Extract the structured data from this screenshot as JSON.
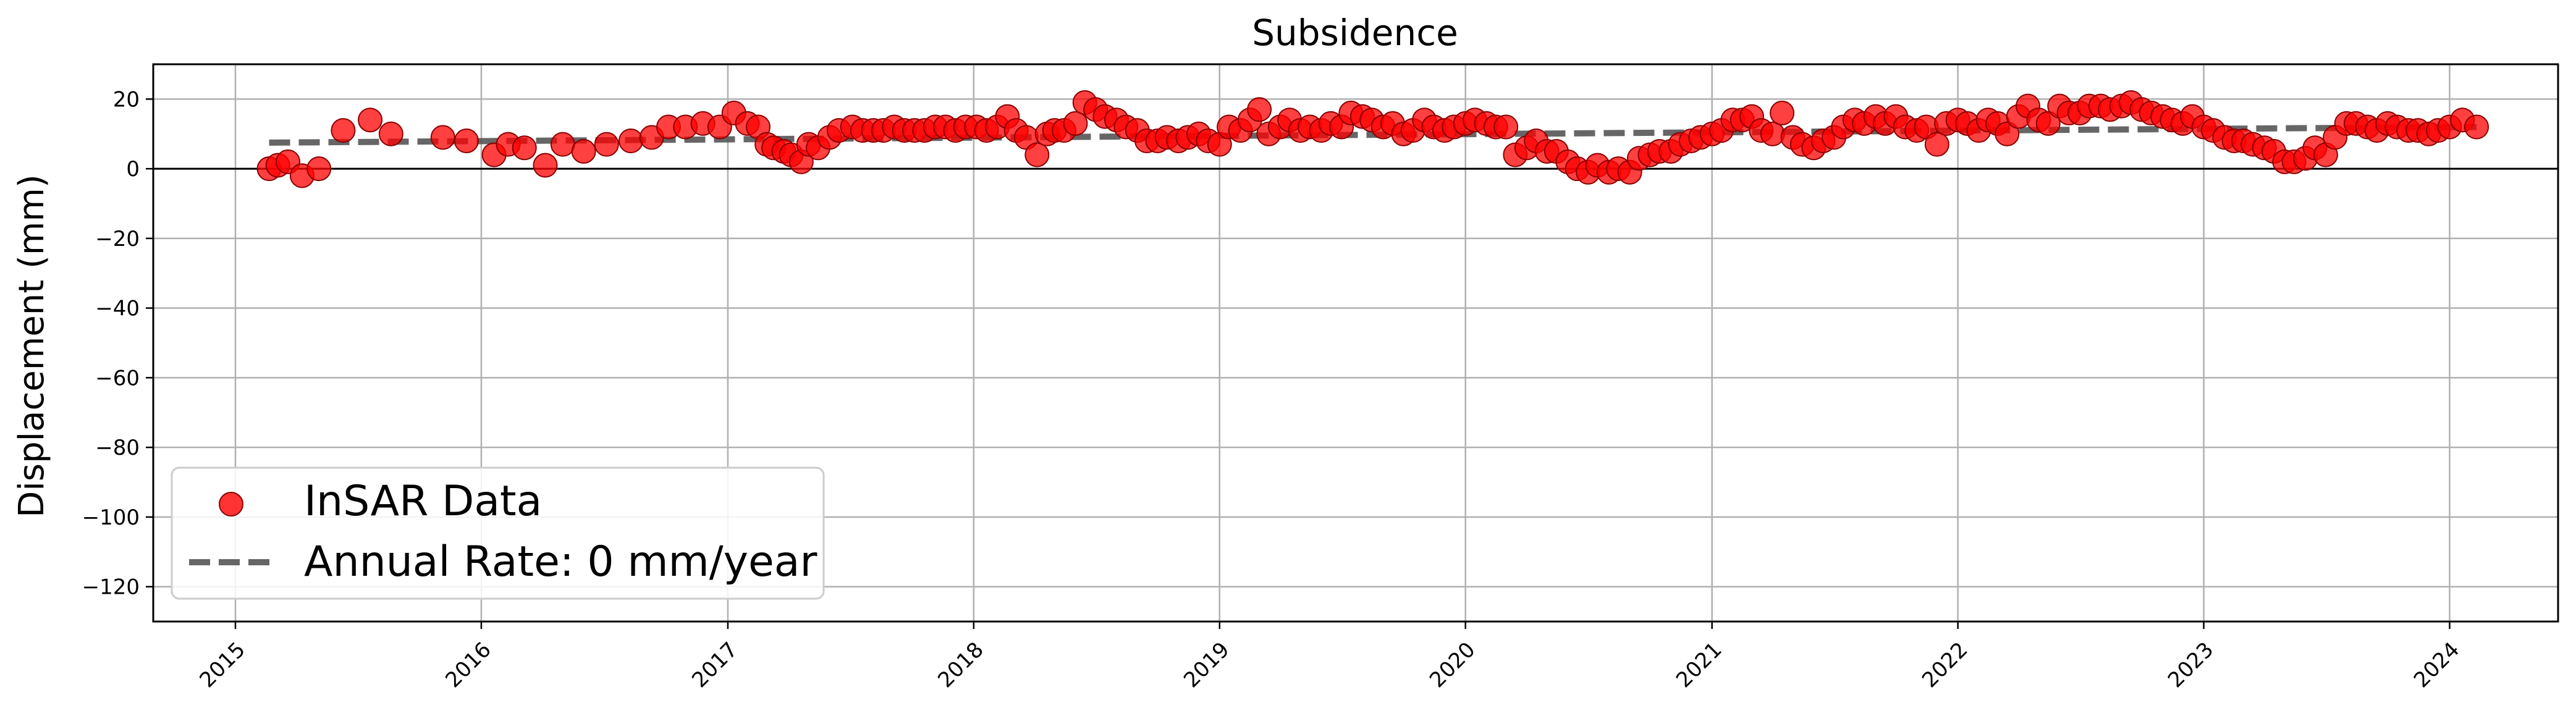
{
  "chart_data": {
    "type": "scatter",
    "title": "Subsidence",
    "xlabel": "",
    "ylabel": "Displacement (mm)",
    "x_axis_type": "date",
    "xlim": [
      "2014-09-01",
      "2024-06-10"
    ],
    "ylim": [
      -130,
      30
    ],
    "x_ticks": [
      "2015",
      "2016",
      "2017",
      "2018",
      "2019",
      "2020",
      "2021",
      "2022",
      "2023",
      "2024"
    ],
    "y_ticks": [
      20,
      0,
      -20,
      -40,
      -60,
      -80,
      -100,
      -120
    ],
    "grid": true,
    "zero_line": true,
    "legend_position": "lower-left",
    "colors": {
      "marker_fill": "#ff0000",
      "marker_edge": "#8b0000",
      "trend": "#555555"
    },
    "series": [
      {
        "name": "InSAR Data",
        "kind": "scatter",
        "x": [
          "2015-02-20",
          "2015-03-05",
          "2015-03-20",
          "2015-04-10",
          "2015-05-05",
          "2015-06-10",
          "2015-07-20",
          "2015-08-20",
          "2015-11-05",
          "2015-12-10",
          "2016-01-20",
          "2016-02-10",
          "2016-03-05",
          "2016-04-05",
          "2016-05-01",
          "2016-06-01",
          "2016-07-05",
          "2016-08-10",
          "2016-09-10",
          "2016-10-05",
          "2016-10-30",
          "2016-11-25",
          "2016-12-20",
          "2017-01-10",
          "2017-01-30",
          "2017-02-15",
          "2017-02-28",
          "2017-03-10",
          "2017-03-25",
          "2017-04-05",
          "2017-04-20",
          "2017-05-01",
          "2017-05-15",
          "2017-06-01",
          "2017-06-15",
          "2017-07-05",
          "2017-07-20",
          "2017-08-05",
          "2017-08-20",
          "2017-09-05",
          "2017-09-20",
          "2017-10-05",
          "2017-10-20",
          "2017-11-05",
          "2017-11-20",
          "2017-12-05",
          "2017-12-20",
          "2018-01-05",
          "2018-01-20",
          "2018-02-05",
          "2018-02-20",
          "2018-03-05",
          "2018-03-20",
          "2018-04-05",
          "2018-04-20",
          "2018-05-01",
          "2018-05-15",
          "2018-06-01",
          "2018-06-15",
          "2018-07-01",
          "2018-07-15",
          "2018-08-01",
          "2018-08-15",
          "2018-09-01",
          "2018-09-15",
          "2018-10-01",
          "2018-10-15",
          "2018-11-01",
          "2018-11-15",
          "2018-12-01",
          "2018-12-15",
          "2019-01-01",
          "2019-01-15",
          "2019-02-01",
          "2019-02-15",
          "2019-03-01",
          "2019-03-15",
          "2019-04-01",
          "2019-04-15",
          "2019-05-01",
          "2019-05-15",
          "2019-06-01",
          "2019-06-15",
          "2019-07-01",
          "2019-07-15",
          "2019-08-01",
          "2019-08-15",
          "2019-09-01",
          "2019-09-15",
          "2019-10-01",
          "2019-10-15",
          "2019-11-01",
          "2019-11-15",
          "2019-12-01",
          "2019-12-15",
          "2020-01-01",
          "2020-01-15",
          "2020-02-01",
          "2020-02-15",
          "2020-03-01",
          "2020-03-15",
          "2020-04-01",
          "2020-04-15",
          "2020-05-01",
          "2020-05-15",
          "2020-06-01",
          "2020-06-15",
          "2020-07-01",
          "2020-07-15",
          "2020-08-01",
          "2020-08-15",
          "2020-09-01",
          "2020-09-15",
          "2020-10-01",
          "2020-10-15",
          "2020-11-01",
          "2020-11-15",
          "2020-12-01",
          "2020-12-15",
          "2021-01-01",
          "2021-01-15",
          "2021-02-01",
          "2021-02-15",
          "2021-03-01",
          "2021-03-15",
          "2021-04-01",
          "2021-04-15",
          "2021-05-01",
          "2021-05-15",
          "2021-06-01",
          "2021-06-15",
          "2021-07-01",
          "2021-07-15",
          "2021-08-01",
          "2021-08-15",
          "2021-09-01",
          "2021-09-15",
          "2021-10-01",
          "2021-10-15",
          "2021-11-01",
          "2021-11-15",
          "2021-12-01",
          "2021-12-15",
          "2022-01-01",
          "2022-01-15",
          "2022-02-01",
          "2022-02-15",
          "2022-03-01",
          "2022-03-15",
          "2022-04-01",
          "2022-04-15",
          "2022-05-01",
          "2022-05-15",
          "2022-06-01",
          "2022-06-15",
          "2022-07-01",
          "2022-07-15",
          "2022-08-01",
          "2022-08-15",
          "2022-09-01",
          "2022-09-15",
          "2022-10-01",
          "2022-10-15",
          "2022-11-01",
          "2022-11-15",
          "2022-12-01",
          "2022-12-15",
          "2023-01-01",
          "2023-01-15",
          "2023-02-01",
          "2023-02-15",
          "2023-03-01",
          "2023-03-15",
          "2023-04-01",
          "2023-04-15",
          "2023-05-01",
          "2023-05-15",
          "2023-06-01",
          "2023-06-15",
          "2023-07-01",
          "2023-07-15",
          "2023-08-01",
          "2023-08-15",
          "2023-09-01",
          "2023-09-15",
          "2023-10-01",
          "2023-10-15",
          "2023-11-01",
          "2023-11-15",
          "2023-12-01",
          "2023-12-15",
          "2024-01-01",
          "2024-01-20",
          "2024-02-10"
        ],
        "y": [
          0,
          1,
          2,
          -2,
          0,
          11,
          14,
          10,
          9,
          8,
          4,
          7,
          6,
          1,
          7,
          5,
          7,
          8,
          9,
          12,
          12,
          13,
          12,
          16,
          13,
          12,
          7,
          6,
          5,
          4,
          2,
          7,
          6,
          9,
          11,
          12,
          11,
          11,
          11,
          12,
          11,
          11,
          11,
          12,
          12,
          11,
          12,
          12,
          11,
          12,
          15,
          11,
          9,
          4,
          10,
          11,
          11,
          13,
          19,
          17,
          15,
          14,
          12,
          11,
          8,
          8,
          9,
          8,
          9,
          10,
          8,
          7,
          12,
          11,
          14,
          17,
          10,
          12,
          14,
          11,
          12,
          11,
          13,
          12,
          16,
          15,
          14,
          12,
          13,
          10,
          11,
          14,
          12,
          11,
          12,
          13,
          14,
          13,
          12,
          12,
          4,
          6,
          8,
          5,
          5,
          2,
          0,
          -1,
          1,
          -1,
          0,
          -1,
          3,
          4,
          5,
          5,
          7,
          8,
          9,
          10,
          11,
          14,
          14,
          15,
          11,
          10,
          16,
          9,
          7,
          6,
          8,
          9,
          12,
          14,
          13,
          15,
          13,
          15,
          12,
          11,
          12,
          7,
          13,
          14,
          13,
          11,
          14,
          13,
          10,
          15,
          18,
          14,
          13,
          18,
          16,
          16,
          18,
          18,
          17,
          18,
          19,
          17,
          16,
          15,
          14,
          13,
          15,
          12,
          11,
          9,
          8,
          8,
          7,
          6,
          5,
          2,
          2,
          3,
          6,
          4,
          9,
          13,
          13,
          12,
          11,
          13,
          12,
          11,
          11,
          10,
          11,
          12,
          14,
          12
        ]
      },
      {
        "name": "Annual Rate: 0 mm/year",
        "kind": "line",
        "style": "dashed",
        "x": [
          "2015-02-20",
          "2024-02-10"
        ],
        "y": [
          7.5,
          12
        ]
      }
    ]
  }
}
